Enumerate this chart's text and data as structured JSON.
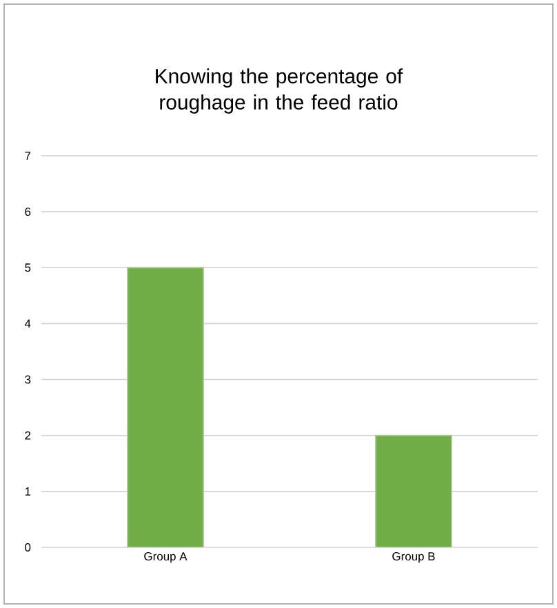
{
  "chart_data": {
    "type": "bar",
    "title": "Knowing the percentage of roughage in the feed ratio",
    "categories": [
      "Group A",
      "Group B"
    ],
    "values": [
      5,
      2
    ],
    "color": "#70ad47",
    "ylim": [
      0,
      7
    ],
    "yticks": [
      0,
      1,
      2,
      3,
      4,
      5,
      6,
      7
    ],
    "grid": "y"
  }
}
